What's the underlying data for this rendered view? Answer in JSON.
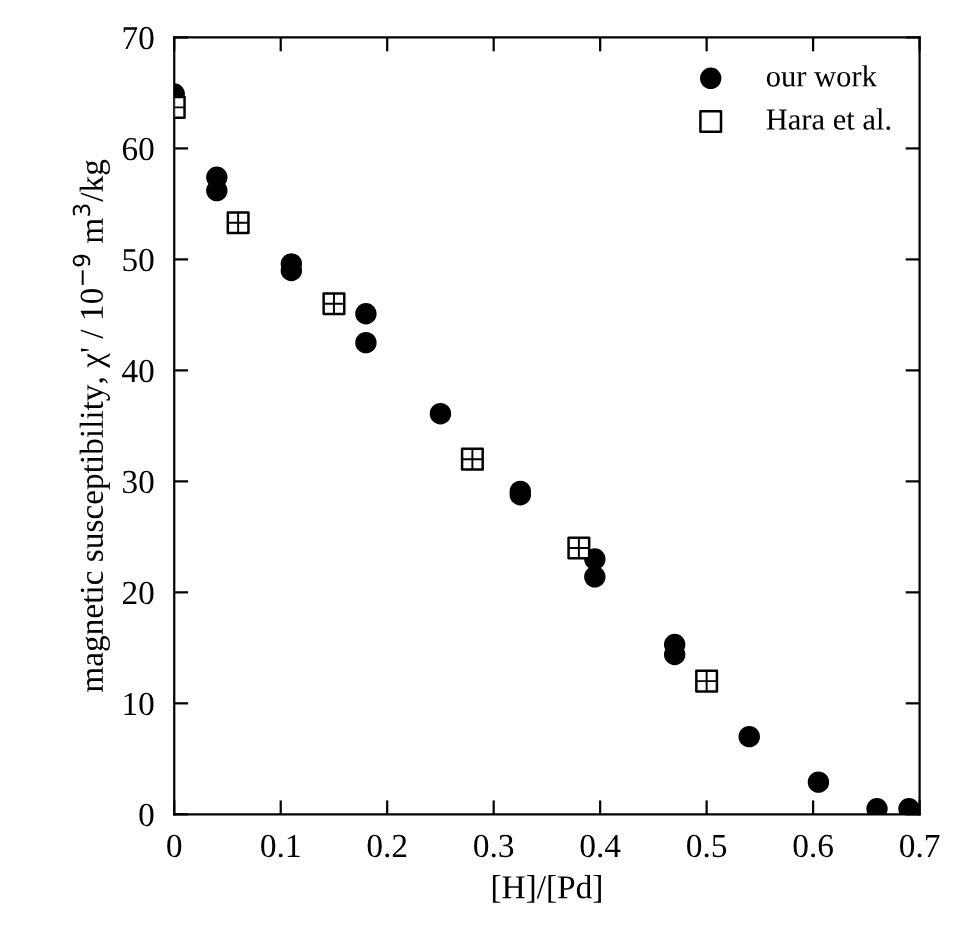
{
  "chart_data": {
    "type": "scatter",
    "xlabel": "[H]/[Pd]",
    "ylabel": "magnetic susceptibility, χ' / 10$^{−9}$ m$^{3}$/kg",
    "xlim": [
      0,
      0.7
    ],
    "ylim": [
      0,
      70
    ],
    "xticks": [
      0,
      0.1,
      0.2,
      0.3,
      0.4,
      0.5,
      0.6,
      0.7
    ],
    "yticks": [
      0,
      10,
      20,
      30,
      40,
      50,
      60,
      70
    ],
    "grid": false,
    "legend": "top right",
    "series": [
      {
        "name": "our work",
        "color": "#000000",
        "marker": "circle",
        "x": [
          0,
          0.04,
          0.04,
          0.11,
          0.11,
          0.18,
          0.18,
          0.25,
          0.325,
          0.325,
          0.395,
          0.395,
          0.47,
          0.47,
          0.54,
          0.605,
          0.66,
          0.69
        ],
        "values": [
          64.9,
          57.4,
          56.2,
          49.6,
          49.0,
          45.1,
          42.5,
          36.1,
          29.1,
          28.8,
          23.0,
          21.4,
          15.3,
          14.4,
          7.0,
          2.9,
          0.5,
          0.5
        ]
      },
      {
        "name": "Hara et al.",
        "color": "#000000",
        "marker": "square",
        "x": [
          0,
          0.06,
          0.15,
          0.28,
          0.38,
          0.5
        ],
        "values": [
          63.7,
          53.3,
          46,
          32,
          24,
          12
        ]
      }
    ]
  }
}
